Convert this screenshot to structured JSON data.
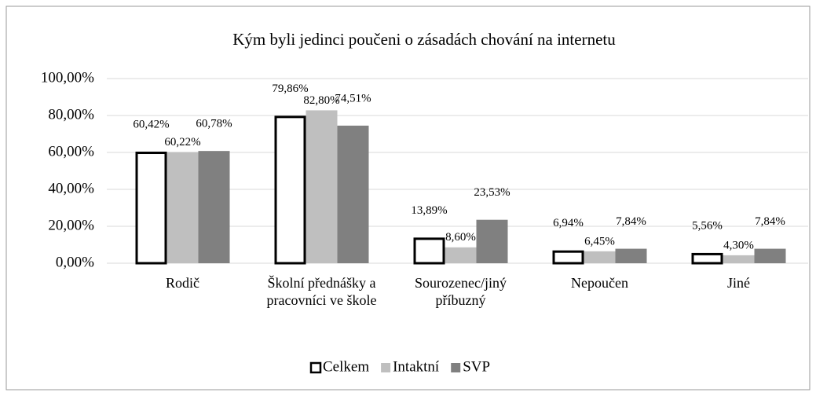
{
  "chart_data": {
    "type": "bar",
    "title": "Kým byli jedinci poučeni o zásadách chování na internetu",
    "categories": [
      "Rodič",
      "Školní přednášky a pracovníci ve škole",
      "Sourozenec/jiný příbuzný",
      "Nepoučen",
      "Jiné"
    ],
    "series": [
      {
        "name": "Celkem",
        "color": "#ffffff",
        "values": [
          60.42,
          79.86,
          13.89,
          6.94,
          5.56
        ],
        "value_labels": [
          "60,42%",
          "79,86%",
          "13,89%",
          "6,94%",
          "5,56%"
        ]
      },
      {
        "name": "Intaktní",
        "color": "#bfbfbf",
        "values": [
          60.22,
          82.8,
          8.6,
          6.45,
          4.3
        ],
        "value_labels": [
          "60,22%",
          "82,80%",
          "8,60%",
          "6,45%",
          "4,30%"
        ]
      },
      {
        "name": "SVP",
        "color": "#808080",
        "values": [
          60.78,
          74.51,
          23.53,
          7.84,
          7.84
        ],
        "value_labels": [
          "60,78%",
          "74,51%",
          "23,53%",
          "7,84%",
          "7,84%"
        ]
      }
    ],
    "ylim": [
      0,
      100
    ],
    "yticks": [
      {
        "value": 0,
        "label": "0,00%"
      },
      {
        "value": 20,
        "label": "20,00%"
      },
      {
        "value": 40,
        "label": "40,00%"
      },
      {
        "value": 60,
        "label": "60,00%"
      },
      {
        "value": 80,
        "label": "80,00%"
      },
      {
        "value": 100,
        "label": "100,00%"
      }
    ],
    "grid": true,
    "legend": "bottom"
  }
}
